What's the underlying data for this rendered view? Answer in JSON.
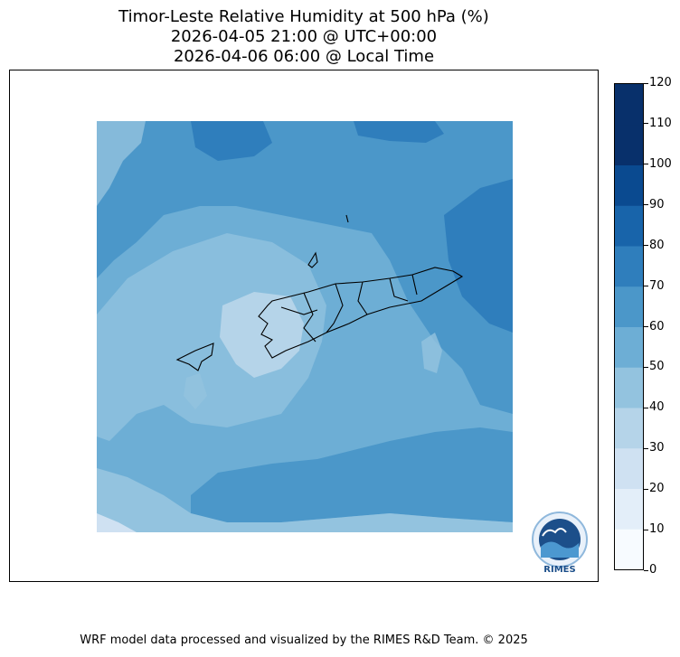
{
  "title": {
    "line1": "Timor-Leste Relative Humidity at 500 hPa (%)",
    "line2": "2026-04-05 21:00 @ UTC+00:00",
    "line3": "2026-04-06 06:00 @ Local Time"
  },
  "colorbar": {
    "ticks": [
      "0",
      "10",
      "20",
      "30",
      "40",
      "50",
      "60",
      "70",
      "80",
      "90",
      "100",
      "110",
      "120"
    ],
    "colors": [
      "#f7fbff",
      "#e3eef9",
      "#cfe1f2",
      "#b5d4e9",
      "#93c3df",
      "#6daed5",
      "#4b97c9",
      "#2f7ebc",
      "#1864aa",
      "#0a4a90",
      "#08306b",
      "#08306b"
    ]
  },
  "logo": {
    "text": "RIMES"
  },
  "footer": "WRF model data processed and visualized by the RIMES R&D Team. © 2025"
}
